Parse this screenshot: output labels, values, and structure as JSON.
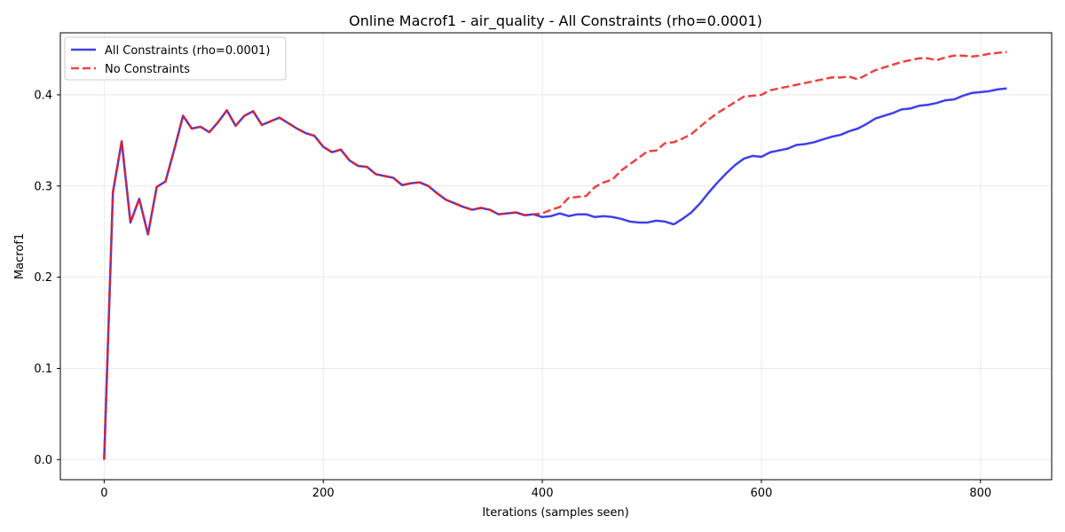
{
  "chart_data": {
    "type": "line",
    "title": "Online Macrof1 - air_quality - All Constraints (rho=0.0001)",
    "xlabel": "Iterations (samples seen)",
    "ylabel": "Macrof1",
    "xlim": [
      -40,
      865
    ],
    "ylim": [
      -0.022,
      0.468
    ],
    "xticks": [
      0,
      200,
      400,
      600,
      800
    ],
    "xtick_labels": [
      "0",
      "200",
      "400",
      "600",
      "800"
    ],
    "yticks": [
      0.0,
      0.1,
      0.2,
      0.3,
      0.4
    ],
    "ytick_labels": [
      "0.0",
      "0.1",
      "0.2",
      "0.3",
      "0.4"
    ],
    "grid": true,
    "legend_position": "top-left",
    "series": [
      {
        "name": "All Constraints (rho=0.0001)",
        "color": "#1f1fe6",
        "line_style": "solid",
        "x": [
          0,
          8,
          16,
          24,
          32,
          40,
          48,
          56,
          64,
          72,
          80,
          88,
          96,
          104,
          112,
          120,
          128,
          136,
          144,
          152,
          160,
          168,
          176,
          184,
          192,
          200,
          208,
          216,
          224,
          232,
          240,
          248,
          256,
          264,
          272,
          280,
          288,
          296,
          304,
          312,
          320,
          328,
          336,
          344,
          352,
          360,
          368,
          376,
          384,
          392,
          400,
          408,
          416,
          424,
          432,
          440,
          448,
          456,
          464,
          472,
          480,
          488,
          496,
          504,
          512,
          520,
          528,
          536,
          544,
          552,
          560,
          568,
          576,
          584,
          592,
          600,
          608,
          616,
          624,
          632,
          640,
          648,
          656,
          664,
          672,
          680,
          688,
          696,
          704,
          712,
          720,
          728,
          736,
          744,
          752,
          760,
          768,
          776,
          784,
          792,
          800,
          808,
          816,
          824
        ],
        "y": [
          0.0,
          0.293,
          0.349,
          0.26,
          0.286,
          0.247,
          0.299,
          0.305,
          0.34,
          0.377,
          0.363,
          0.365,
          0.359,
          0.37,
          0.383,
          0.366,
          0.377,
          0.382,
          0.367,
          0.371,
          0.375,
          0.369,
          0.363,
          0.358,
          0.355,
          0.343,
          0.337,
          0.34,
          0.328,
          0.322,
          0.321,
          0.313,
          0.311,
          0.309,
          0.301,
          0.303,
          0.304,
          0.3,
          0.292,
          0.285,
          0.281,
          0.277,
          0.274,
          0.276,
          0.274,
          0.269,
          0.27,
          0.271,
          0.268,
          0.269,
          0.266,
          0.267,
          0.27,
          0.267,
          0.269,
          0.269,
          0.266,
          0.267,
          0.266,
          0.264,
          0.261,
          0.26,
          0.26,
          0.262,
          0.261,
          0.258,
          0.264,
          0.271,
          0.281,
          0.293,
          0.304,
          0.314,
          0.323,
          0.33,
          0.333,
          0.332,
          0.337,
          0.339,
          0.341,
          0.345,
          0.346,
          0.348,
          0.351,
          0.354,
          0.356,
          0.36,
          0.363,
          0.368,
          0.374,
          0.377,
          0.38,
          0.384,
          0.385,
          0.388,
          0.389,
          0.391,
          0.394,
          0.395,
          0.399,
          0.402,
          0.403,
          0.404,
          0.406,
          0.407
        ]
      },
      {
        "name": "No Constraints",
        "color": "#e62222",
        "line_style": "dashed",
        "x": [
          0,
          8,
          16,
          24,
          32,
          40,
          48,
          56,
          64,
          72,
          80,
          88,
          96,
          104,
          112,
          120,
          128,
          136,
          144,
          152,
          160,
          168,
          176,
          184,
          192,
          200,
          208,
          216,
          224,
          232,
          240,
          248,
          256,
          264,
          272,
          280,
          288,
          296,
          304,
          312,
          320,
          328,
          336,
          344,
          352,
          360,
          368,
          376,
          384,
          392,
          400,
          408,
          416,
          424,
          432,
          440,
          448,
          456,
          464,
          472,
          480,
          488,
          496,
          504,
          512,
          520,
          528,
          536,
          544,
          552,
          560,
          568,
          576,
          584,
          592,
          600,
          608,
          616,
          624,
          632,
          640,
          648,
          656,
          664,
          672,
          680,
          688,
          696,
          704,
          712,
          720,
          728,
          736,
          744,
          752,
          760,
          768,
          776,
          784,
          792,
          800,
          808,
          816,
          824
        ],
        "y": [
          0.0,
          0.293,
          0.349,
          0.26,
          0.286,
          0.247,
          0.299,
          0.305,
          0.34,
          0.377,
          0.363,
          0.365,
          0.359,
          0.37,
          0.383,
          0.366,
          0.377,
          0.382,
          0.367,
          0.371,
          0.375,
          0.369,
          0.363,
          0.358,
          0.355,
          0.343,
          0.337,
          0.34,
          0.328,
          0.322,
          0.321,
          0.313,
          0.311,
          0.309,
          0.301,
          0.303,
          0.304,
          0.3,
          0.292,
          0.285,
          0.281,
          0.277,
          0.274,
          0.276,
          0.274,
          0.269,
          0.27,
          0.271,
          0.268,
          0.269,
          0.27,
          0.274,
          0.277,
          0.287,
          0.288,
          0.289,
          0.299,
          0.304,
          0.307,
          0.317,
          0.324,
          0.331,
          0.338,
          0.339,
          0.347,
          0.348,
          0.352,
          0.357,
          0.365,
          0.373,
          0.38,
          0.386,
          0.392,
          0.398,
          0.399,
          0.4,
          0.405,
          0.407,
          0.409,
          0.411,
          0.413,
          0.415,
          0.417,
          0.419,
          0.419,
          0.42,
          0.417,
          0.422,
          0.427,
          0.43,
          0.433,
          0.436,
          0.438,
          0.44,
          0.44,
          0.438,
          0.441,
          0.443,
          0.443,
          0.442,
          0.443,
          0.445,
          0.446,
          0.447
        ]
      }
    ]
  }
}
